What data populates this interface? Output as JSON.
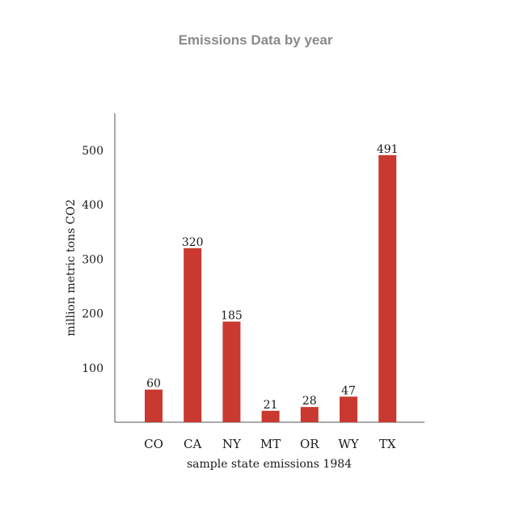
{
  "chart_data": {
    "type": "bar",
    "title": "Emissions Data by year",
    "xlabel": "sample state emissions 1984",
    "ylabel": "million metric tons CO2",
    "categories": [
      "CO",
      "CA",
      "NY",
      "MT",
      "OR",
      "WY",
      "TX"
    ],
    "values": [
      60,
      320,
      185,
      21,
      28,
      47,
      491
    ],
    "value_labels": [
      "60",
      "320",
      "185",
      "21",
      "28",
      "47",
      "491"
    ],
    "yticks": [
      "100",
      "200",
      "300",
      "400",
      "500"
    ],
    "ytick_values": [
      100,
      200,
      300,
      400,
      500
    ],
    "ylim": [
      0,
      565
    ],
    "bar_color": "#c9392f",
    "grid": false,
    "legend": "none"
  }
}
